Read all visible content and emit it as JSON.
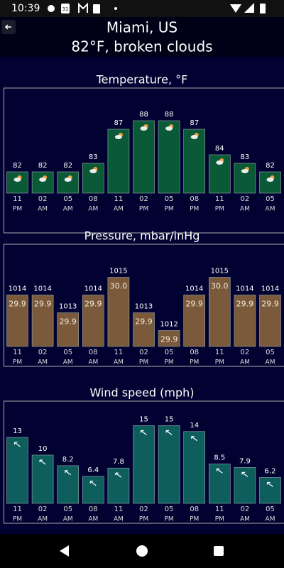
{
  "status_bar": {
    "time": "10:39",
    "calendar_day": "31"
  },
  "header": {
    "city": "Miami, US",
    "conditions": "82°F, broken clouds"
  },
  "chart_data": [
    {
      "type": "bar",
      "title": "Temperature, °F",
      "categories": [
        [
          "11",
          "PM"
        ],
        [
          "02",
          "AM"
        ],
        [
          "05",
          "AM"
        ],
        [
          "08",
          "AM"
        ],
        [
          "11",
          "AM"
        ],
        [
          "02",
          "PM"
        ],
        [
          "05",
          "PM"
        ],
        [
          "08",
          "PM"
        ],
        [
          "11",
          "PM"
        ],
        [
          "02",
          "AM"
        ],
        [
          "05",
          "AM"
        ]
      ],
      "values": [
        82,
        82,
        82,
        83,
        87,
        88,
        88,
        87,
        84,
        83,
        82
      ],
      "color": "#0b5a37",
      "ylim": [
        79.5,
        88.5
      ]
    },
    {
      "type": "bar",
      "title": "Pressure, mbar/inHg",
      "categories": [
        [
          "11",
          "PM"
        ],
        [
          "02",
          "AM"
        ],
        [
          "05",
          "AM"
        ],
        [
          "08",
          "AM"
        ],
        [
          "11",
          "AM"
        ],
        [
          "02",
          "PM"
        ],
        [
          "05",
          "PM"
        ],
        [
          "08",
          "PM"
        ],
        [
          "11",
          "PM"
        ],
        [
          "02",
          "AM"
        ],
        [
          "05",
          "AM"
        ]
      ],
      "values": [
        1014,
        1014,
        1013,
        1014,
        1015,
        1013,
        1012,
        1014,
        1015,
        1014,
        1014
      ],
      "inner_labels": [
        "29.9",
        "29.9",
        "29.9",
        "29.9",
        "30.0",
        "29.9",
        "29.9",
        "29.9",
        "30.0",
        "29.9",
        "29.9"
      ],
      "color": "#7a5a3b",
      "ylim": [
        1011.1,
        1015.1
      ]
    },
    {
      "type": "bar",
      "title": "Wind speed (mph)",
      "categories": [
        [
          "11",
          "PM"
        ],
        [
          "02",
          "AM"
        ],
        [
          "05",
          "AM"
        ],
        [
          "08",
          "AM"
        ],
        [
          "11",
          "AM"
        ],
        [
          "02",
          "PM"
        ],
        [
          "05",
          "PM"
        ],
        [
          "08",
          "PM"
        ],
        [
          "11",
          "PM"
        ],
        [
          "02",
          "AM"
        ],
        [
          "05",
          "AM"
        ]
      ],
      "values": [
        13,
        10,
        8.2,
        6.4,
        7.8,
        15,
        15,
        14,
        8.5,
        7.9,
        6.2
      ],
      "color": "#0f5e5e",
      "ylim": [
        1.8,
        15.6
      ]
    }
  ]
}
